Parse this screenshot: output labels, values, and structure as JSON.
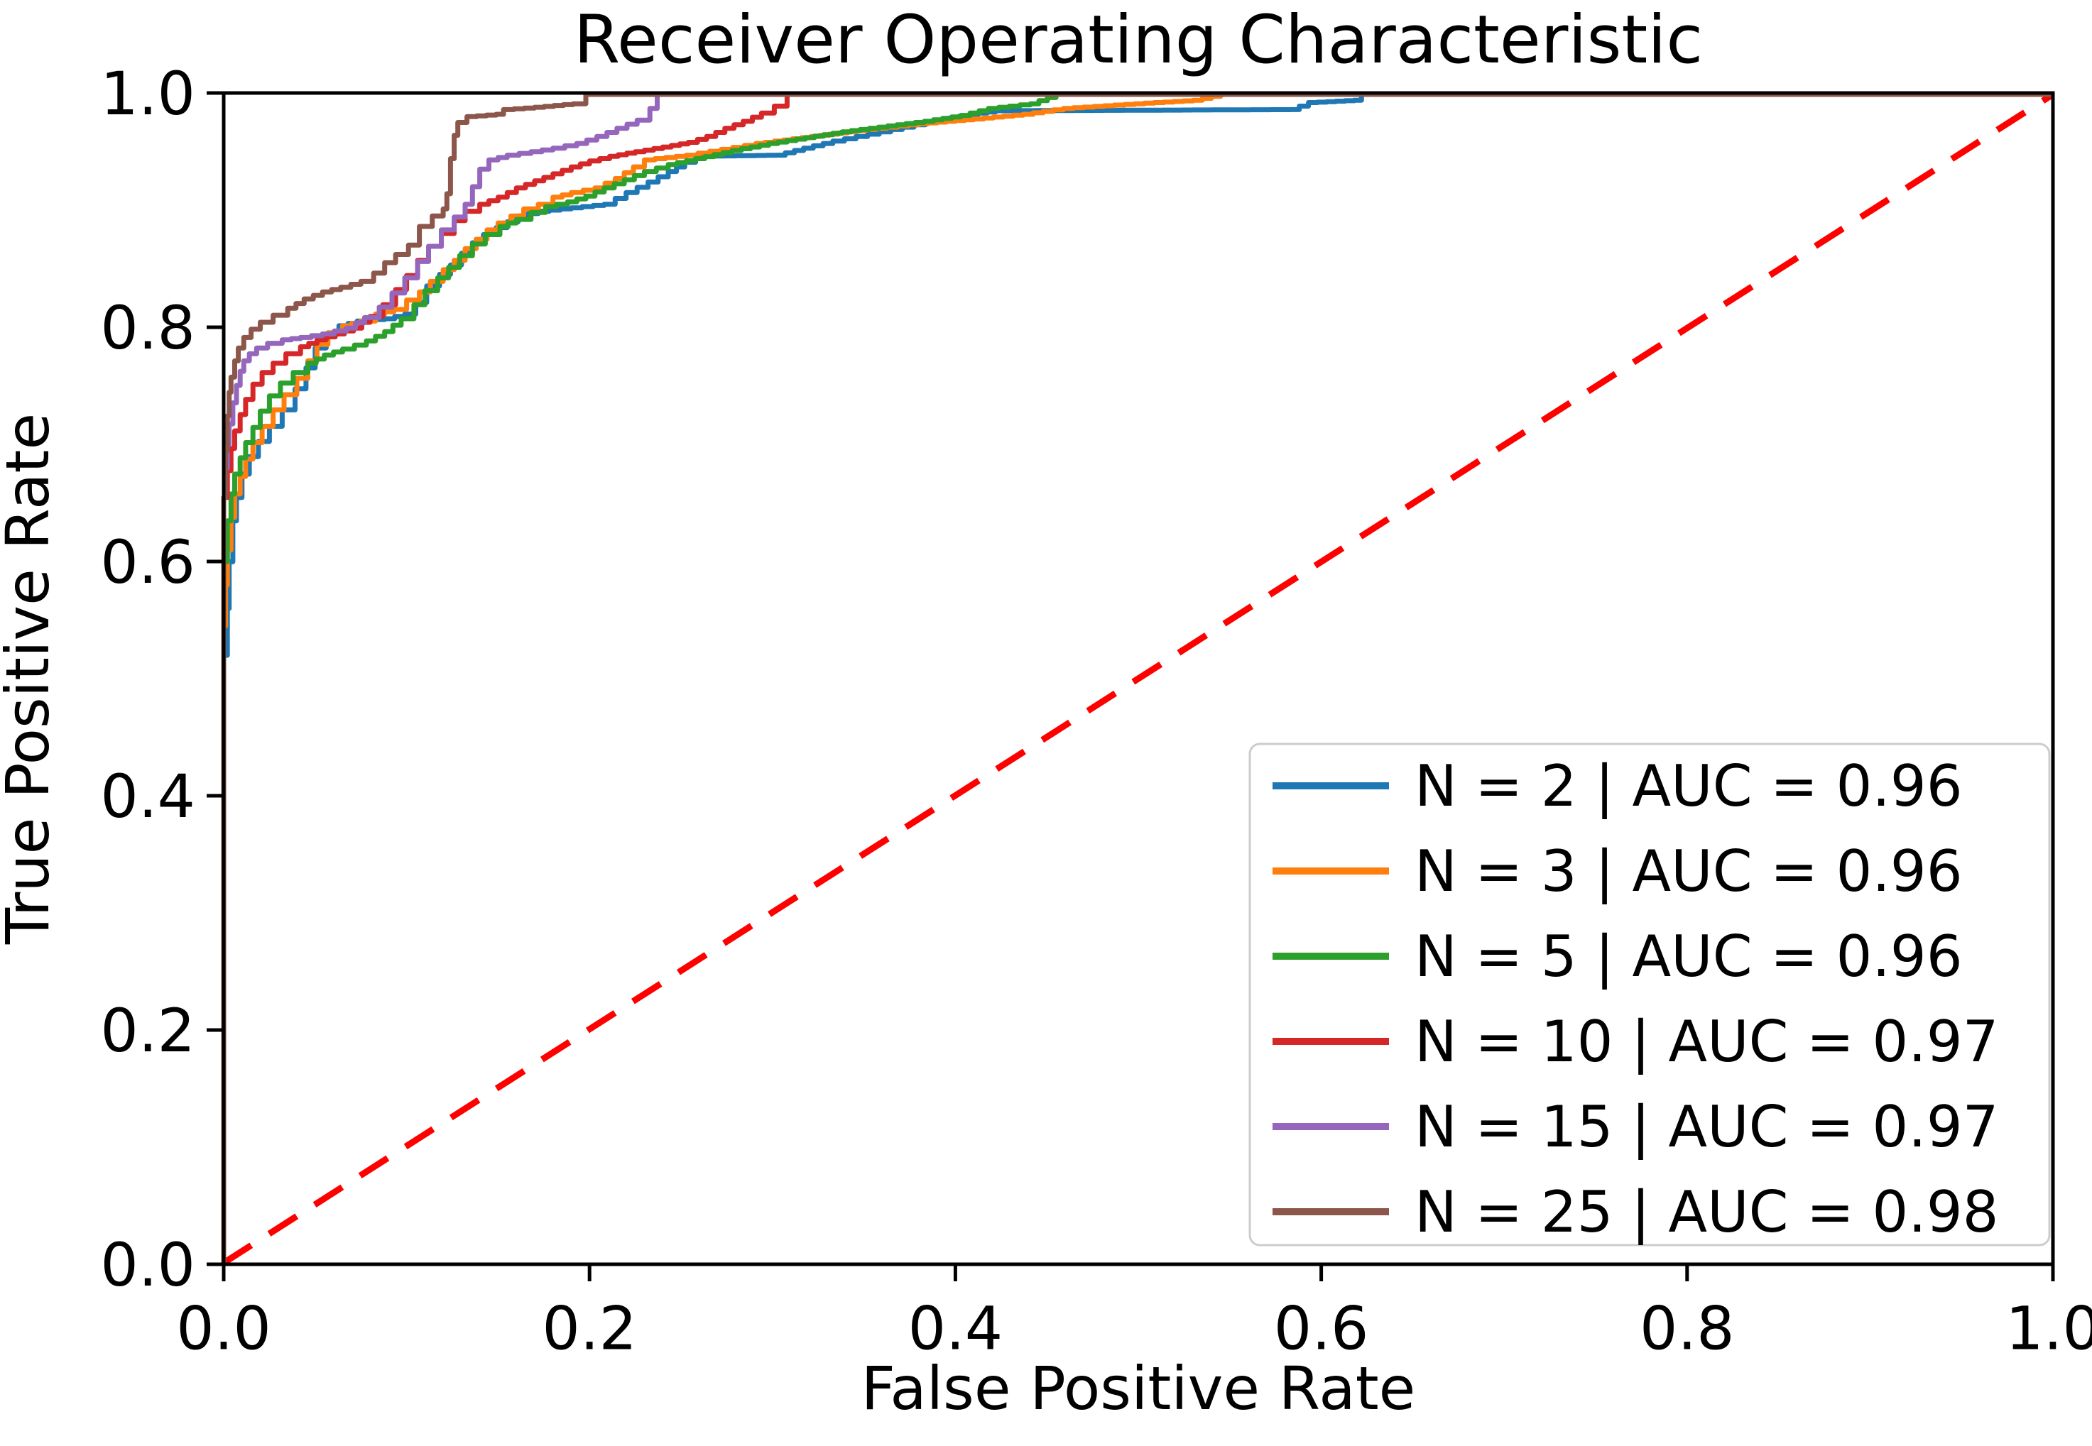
{
  "figure": {
    "background": "#ffffff",
    "border_color": "#000000"
  },
  "chart_data": {
    "type": "line",
    "subtype": "roc-curves",
    "title": "Receiver Operating Characteristic",
    "xlabel": "False Positive Rate",
    "ylabel": "True Positive Rate",
    "xlim": [
      0.0,
      1.0
    ],
    "ylim": [
      0.0,
      1.0
    ],
    "grid": false,
    "legend_position": "lower right",
    "x_ticks": [
      0.0,
      0.2,
      0.4,
      0.6,
      0.8,
      1.0
    ],
    "y_ticks": [
      0.0,
      0.2,
      0.4,
      0.6,
      0.8,
      1.0
    ],
    "x_tick_labels": [
      "0.0",
      "0.2",
      "0.4",
      "0.6",
      "0.8",
      "1.0"
    ],
    "y_tick_labels": [
      "0.0",
      "0.2",
      "0.4",
      "0.6",
      "0.8",
      "1.0"
    ],
    "reference_line": {
      "name": "chance-diagonal",
      "style": "dashed",
      "color": "#ff0000",
      "points": [
        [
          0.0,
          0.0
        ],
        [
          1.0,
          1.0
        ]
      ]
    },
    "series": [
      {
        "name": "N2",
        "n": 2,
        "auc": 0.96,
        "label": "N = 2 | AUC = 0.96",
        "color": "#1f77b4",
        "points": [
          [
            0,
            0
          ],
          [
            0,
            0.52
          ],
          [
            0.002,
            0.56
          ],
          [
            0.003,
            0.6
          ],
          [
            0.005,
            0.635
          ],
          [
            0.007,
            0.655
          ],
          [
            0.01,
            0.675
          ],
          [
            0.014,
            0.69
          ],
          [
            0.019,
            0.703
          ],
          [
            0.025,
            0.716
          ],
          [
            0.032,
            0.73
          ],
          [
            0.039,
            0.748
          ],
          [
            0.045,
            0.766
          ],
          [
            0.05,
            0.783
          ],
          [
            0.056,
            0.795
          ],
          [
            0.063,
            0.802
          ],
          [
            0.073,
            0.806
          ],
          [
            0.088,
            0.808
          ],
          [
            0.099,
            0.812
          ],
          [
            0.105,
            0.822
          ],
          [
            0.111,
            0.836
          ],
          [
            0.118,
            0.846
          ],
          [
            0.124,
            0.854
          ],
          [
            0.13,
            0.864
          ],
          [
            0.136,
            0.873
          ],
          [
            0.142,
            0.88
          ],
          [
            0.149,
            0.886
          ],
          [
            0.155,
            0.891
          ],
          [
            0.161,
            0.896
          ],
          [
            0.172,
            0.9
          ],
          [
            0.196,
            0.904
          ],
          [
            0.208,
            0.906
          ],
          [
            0.22,
            0.916
          ],
          [
            0.232,
            0.925
          ],
          [
            0.243,
            0.934
          ],
          [
            0.252,
            0.942
          ],
          [
            0.258,
            0.947
          ],
          [
            0.302,
            0.948
          ],
          [
            0.317,
            0.954
          ],
          [
            0.333,
            0.96
          ],
          [
            0.352,
            0.966
          ],
          [
            0.371,
            0.972
          ],
          [
            0.39,
            0.978
          ],
          [
            0.408,
            0.983
          ],
          [
            0.422,
            0.986
          ],
          [
            0.583,
            0.987
          ],
          [
            0.593,
            0.993
          ],
          [
            0.618,
            0.995
          ],
          [
            0.622,
            1.0
          ],
          [
            1,
            1
          ]
        ]
      },
      {
        "name": "N3",
        "n": 3,
        "auc": 0.96,
        "label": "N = 3 | AUC = 0.96",
        "color": "#ff7f0e",
        "points": [
          [
            0,
            0
          ],
          [
            0,
            0.545
          ],
          [
            0.001,
            0.58
          ],
          [
            0.002,
            0.61
          ],
          [
            0.004,
            0.638
          ],
          [
            0.006,
            0.658
          ],
          [
            0.009,
            0.673
          ],
          [
            0.012,
            0.688
          ],
          [
            0.016,
            0.702
          ],
          [
            0.021,
            0.716
          ],
          [
            0.027,
            0.73
          ],
          [
            0.033,
            0.743
          ],
          [
            0.04,
            0.757
          ],
          [
            0.046,
            0.772
          ],
          [
            0.051,
            0.786
          ],
          [
            0.057,
            0.796
          ],
          [
            0.065,
            0.802
          ],
          [
            0.075,
            0.806
          ],
          [
            0.083,
            0.812
          ],
          [
            0.093,
            0.816
          ],
          [
            0.1,
            0.824
          ],
          [
            0.107,
            0.831
          ],
          [
            0.113,
            0.84
          ],
          [
            0.12,
            0.85
          ],
          [
            0.126,
            0.858
          ],
          [
            0.132,
            0.868
          ],
          [
            0.138,
            0.876
          ],
          [
            0.144,
            0.884
          ],
          [
            0.15,
            0.89
          ],
          [
            0.157,
            0.896
          ],
          [
            0.164,
            0.902
          ],
          [
            0.172,
            0.906
          ],
          [
            0.18,
            0.912
          ],
          [
            0.19,
            0.916
          ],
          [
            0.203,
            0.92
          ],
          [
            0.214,
            0.928
          ],
          [
            0.224,
            0.938
          ],
          [
            0.23,
            0.944
          ],
          [
            0.253,
            0.948
          ],
          [
            0.272,
            0.953
          ],
          [
            0.291,
            0.958
          ],
          [
            0.311,
            0.962
          ],
          [
            0.331,
            0.966
          ],
          [
            0.351,
            0.97
          ],
          [
            0.38,
            0.975
          ],
          [
            0.41,
            0.979
          ],
          [
            0.437,
            0.983
          ],
          [
            0.459,
            0.988
          ],
          [
            0.498,
            0.992
          ],
          [
            0.53,
            0.995
          ],
          [
            0.545,
            1.0
          ],
          [
            1,
            1
          ]
        ]
      },
      {
        "name": "N5",
        "n": 5,
        "auc": 0.96,
        "label": "N = 5 | AUC = 0.96",
        "color": "#2ca02c",
        "points": [
          [
            0,
            0
          ],
          [
            0,
            0.6
          ],
          [
            0.002,
            0.635
          ],
          [
            0.004,
            0.658
          ],
          [
            0.006,
            0.675
          ],
          [
            0.009,
            0.689
          ],
          [
            0.012,
            0.702
          ],
          [
            0.016,
            0.715
          ],
          [
            0.02,
            0.729
          ],
          [
            0.025,
            0.742
          ],
          [
            0.031,
            0.753
          ],
          [
            0.038,
            0.762
          ],
          [
            0.046,
            0.77
          ],
          [
            0.055,
            0.777
          ],
          [
            0.065,
            0.782
          ],
          [
            0.078,
            0.789
          ],
          [
            0.088,
            0.797
          ],
          [
            0.097,
            0.808
          ],
          [
            0.104,
            0.82
          ],
          [
            0.11,
            0.832
          ],
          [
            0.117,
            0.843
          ],
          [
            0.123,
            0.852
          ],
          [
            0.129,
            0.862
          ],
          [
            0.136,
            0.872
          ],
          [
            0.143,
            0.88
          ],
          [
            0.151,
            0.887
          ],
          [
            0.16,
            0.893
          ],
          [
            0.168,
            0.899
          ],
          [
            0.176,
            0.904
          ],
          [
            0.188,
            0.908
          ],
          [
            0.198,
            0.913
          ],
          [
            0.208,
            0.92
          ],
          [
            0.219,
            0.927
          ],
          [
            0.23,
            0.934
          ],
          [
            0.243,
            0.94
          ],
          [
            0.258,
            0.945
          ],
          [
            0.278,
            0.952
          ],
          [
            0.298,
            0.958
          ],
          [
            0.318,
            0.963
          ],
          [
            0.338,
            0.968
          ],
          [
            0.358,
            0.972
          ],
          [
            0.383,
            0.977
          ],
          [
            0.403,
            0.982
          ],
          [
            0.418,
            0.988
          ],
          [
            0.441,
            0.992
          ],
          [
            0.455,
            1.0
          ],
          [
            1,
            1
          ]
        ]
      },
      {
        "name": "N10",
        "n": 10,
        "auc": 0.97,
        "label": "N = 10 | AUC = 0.97",
        "color": "#d62728",
        "points": [
          [
            0,
            0
          ],
          [
            0,
            0.655
          ],
          [
            0.002,
            0.678
          ],
          [
            0.004,
            0.697
          ],
          [
            0.006,
            0.712
          ],
          [
            0.009,
            0.726
          ],
          [
            0.012,
            0.739
          ],
          [
            0.016,
            0.752
          ],
          [
            0.021,
            0.762
          ],
          [
            0.027,
            0.77
          ],
          [
            0.034,
            0.778
          ],
          [
            0.042,
            0.784
          ],
          [
            0.051,
            0.79
          ],
          [
            0.061,
            0.795
          ],
          [
            0.071,
            0.8
          ],
          [
            0.08,
            0.81
          ],
          [
            0.087,
            0.82
          ],
          [
            0.094,
            0.833
          ],
          [
            0.1,
            0.845
          ],
          [
            0.106,
            0.858
          ],
          [
            0.112,
            0.87
          ],
          [
            0.119,
            0.881
          ],
          [
            0.126,
            0.892
          ],
          [
            0.132,
            0.9
          ],
          [
            0.14,
            0.906
          ],
          [
            0.15,
            0.912
          ],
          [
            0.16,
            0.92
          ],
          [
            0.17,
            0.926
          ],
          [
            0.18,
            0.932
          ],
          [
            0.19,
            0.938
          ],
          [
            0.2,
            0.943
          ],
          [
            0.211,
            0.947
          ],
          [
            0.225,
            0.951
          ],
          [
            0.24,
            0.955
          ],
          [
            0.254,
            0.959
          ],
          [
            0.264,
            0.964
          ],
          [
            0.274,
            0.971
          ],
          [
            0.284,
            0.977
          ],
          [
            0.294,
            0.984
          ],
          [
            0.301,
            0.99
          ],
          [
            0.308,
            1.0
          ],
          [
            1,
            1
          ]
        ]
      },
      {
        "name": "N15",
        "n": 15,
        "auc": 0.97,
        "label": "N = 15 | AUC = 0.97",
        "color": "#9467bd",
        "points": [
          [
            0,
            0
          ],
          [
            0,
            0.655
          ],
          [
            0.001,
            0.68
          ],
          [
            0.002,
            0.7
          ],
          [
            0.003,
            0.718
          ],
          [
            0.005,
            0.736
          ],
          [
            0.007,
            0.751
          ],
          [
            0.009,
            0.763
          ],
          [
            0.011,
            0.772
          ],
          [
            0.014,
            0.778
          ],
          [
            0.018,
            0.783
          ],
          [
            0.024,
            0.787
          ],
          [
            0.032,
            0.79
          ],
          [
            0.042,
            0.792
          ],
          [
            0.054,
            0.795
          ],
          [
            0.067,
            0.8
          ],
          [
            0.077,
            0.809
          ],
          [
            0.085,
            0.818
          ],
          [
            0.092,
            0.83
          ],
          [
            0.099,
            0.843
          ],
          [
            0.106,
            0.857
          ],
          [
            0.112,
            0.87
          ],
          [
            0.119,
            0.884
          ],
          [
            0.126,
            0.895
          ],
          [
            0.132,
            0.906
          ],
          [
            0.136,
            0.921
          ],
          [
            0.14,
            0.936
          ],
          [
            0.145,
            0.944
          ],
          [
            0.155,
            0.948
          ],
          [
            0.168,
            0.951
          ],
          [
            0.18,
            0.954
          ],
          [
            0.193,
            0.958
          ],
          [
            0.204,
            0.964
          ],
          [
            0.215,
            0.971
          ],
          [
            0.226,
            0.978
          ],
          [
            0.233,
            0.988
          ],
          [
            0.237,
            1.0
          ],
          [
            1,
            1
          ]
        ]
      },
      {
        "name": "N25",
        "n": 25,
        "auc": 0.98,
        "label": "N = 25 | AUC = 0.98",
        "color": "#8c564b",
        "points": [
          [
            0,
            0
          ],
          [
            0,
            0.655
          ],
          [
            0.001,
            0.695
          ],
          [
            0.002,
            0.725
          ],
          [
            0.003,
            0.745
          ],
          [
            0.004,
            0.758
          ],
          [
            0.006,
            0.772
          ],
          [
            0.008,
            0.783
          ],
          [
            0.011,
            0.792
          ],
          [
            0.015,
            0.799
          ],
          [
            0.02,
            0.805
          ],
          [
            0.027,
            0.811
          ],
          [
            0.035,
            0.817
          ],
          [
            0.044,
            0.825
          ],
          [
            0.054,
            0.831
          ],
          [
            0.064,
            0.835
          ],
          [
            0.075,
            0.84
          ],
          [
            0.082,
            0.847
          ],
          [
            0.088,
            0.856
          ],
          [
            0.094,
            0.863
          ],
          [
            0.101,
            0.871
          ],
          [
            0.107,
            0.887
          ],
          [
            0.114,
            0.896
          ],
          [
            0.12,
            0.902
          ],
          [
            0.122,
            0.915
          ],
          [
            0.124,
            0.945
          ],
          [
            0.126,
            0.965
          ],
          [
            0.128,
            0.976
          ],
          [
            0.133,
            0.981
          ],
          [
            0.149,
            0.983
          ],
          [
            0.153,
            0.987
          ],
          [
            0.17,
            0.989
          ],
          [
            0.191,
            0.992
          ],
          [
            0.198,
            1.0
          ],
          [
            1,
            1
          ]
        ]
      }
    ]
  }
}
